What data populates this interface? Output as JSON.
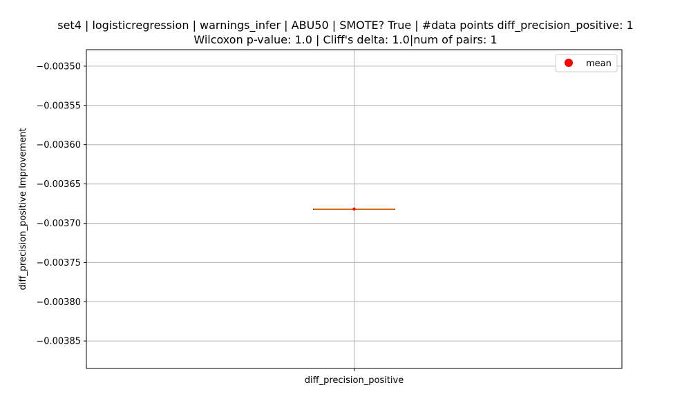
{
  "chart_data": {
    "type": "box",
    "title_line1": "set4 | logisticregression | warnings_infer | ABU50 | SMOTE? True | #data points diff_precision_positive: 1",
    "title_line2": "Wilcoxon p-value: 1.0 | Cliff's delta: 1.0|num of pairs: 1",
    "xlabel": "",
    "ylabel": "diff_precision_positive Improvement",
    "categories": [
      "diff_precision_positive"
    ],
    "ylim": [
      -0.003885,
      -0.003479
    ],
    "yticks": [
      -0.0035,
      -0.00355,
      -0.0036,
      -0.00365,
      -0.0037,
      -0.00375,
      -0.0038,
      -0.00385
    ],
    "ytick_labels": [
      "−0.00350",
      "−0.00355",
      "−0.00360",
      "−0.00365",
      "−0.00370",
      "−0.00375",
      "−0.00380",
      "−0.00385"
    ],
    "grid": true,
    "series": [
      {
        "category": "diff_precision_positive",
        "min": -0.003682,
        "q1": -0.003682,
        "median": -0.003682,
        "q3": -0.003682,
        "max": -0.003682,
        "mean": -0.003682
      }
    ],
    "legend": {
      "position": "top-right",
      "entries": [
        {
          "label": "mean",
          "color": "#ff0000"
        }
      ]
    },
    "colors": {
      "box": "#000000",
      "median": "#ff7f0e",
      "mean_marker": "#ff0000",
      "grid": "#b0b0b0"
    }
  }
}
